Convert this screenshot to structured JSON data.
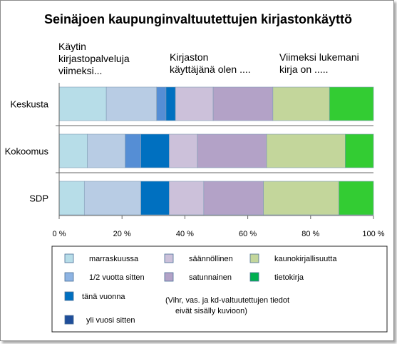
{
  "chart_data": {
    "type": "bar",
    "orientation": "horizontal",
    "stacked": "percent",
    "title": "Seinäjoen kaupunginvaltuutettujen kirjastonkäyttö",
    "group_headers": [
      [
        "Käytin",
        "kirjastopalveluja",
        "viimeksi..."
      ],
      [
        "Kirjaston",
        "käyttäjänä olen ...."
      ],
      [
        "Viimeksi lukemani",
        "kirja on ....."
      ]
    ],
    "categories": [
      "Keskusta",
      "Kokoomus",
      "SDP"
    ],
    "xlim": [
      0,
      100
    ],
    "x_ticks": [
      "0 %",
      "20 %",
      "40 %",
      "60 %",
      "80 %",
      "100 %"
    ],
    "grid": false,
    "legend_position": "bottom",
    "series": [
      {
        "name": "marraskuussa",
        "color": "#b7dde8",
        "values": [
          15,
          9,
          8
        ]
      },
      {
        "name": "1/2 vuotta sitten",
        "color": "#b8cce4",
        "values": [
          16,
          12,
          18
        ]
      },
      {
        "name": "tänä vuonna",
        "color": "#558ed5",
        "values": [
          3,
          5,
          0
        ]
      },
      {
        "name": "yli vuosi sitten",
        "color": "#0070c0",
        "values": [
          3,
          9,
          9
        ]
      },
      {
        "name": "säännöllinen",
        "color": "#ccc1da",
        "values": [
          12,
          9,
          11
        ]
      },
      {
        "name": "satunnainen",
        "color": "#b3a2c7",
        "values": [
          19,
          22,
          19
        ]
      },
      {
        "name": "kaunokirjallisuutta",
        "color": "#c3d69b",
        "values": [
          18,
          25,
          24
        ]
      },
      {
        "name": "tietokirja",
        "color": "#33cc33",
        "values": [
          14,
          9,
          11
        ]
      }
    ],
    "legend_order": [
      "marraskuussa",
      "säännöllinen",
      "kaunokirjallisuutta",
      "1/2 vuotta sitten",
      "satunnainen",
      "tietokirja",
      "tänä vuonna",
      "yli vuosi sitten"
    ],
    "legend_colors": {
      "marraskuussa": "#b7dde8",
      "1/2 vuotta sitten": "#8eb4e3",
      "tänä vuonna": "#0070c0",
      "yli vuosi sitten": "#1f4e9a",
      "säännöllinen": "#ccc1da",
      "satunnainen": "#b3a2c7",
      "kaunokirjallisuutta": "#c3d69b",
      "tietokirja": "#00b050"
    },
    "annotation": [
      "(Vihr, vas. ja kd-valtuutettujen tiedot",
      "eivät sisälly kuvioon)"
    ]
  }
}
